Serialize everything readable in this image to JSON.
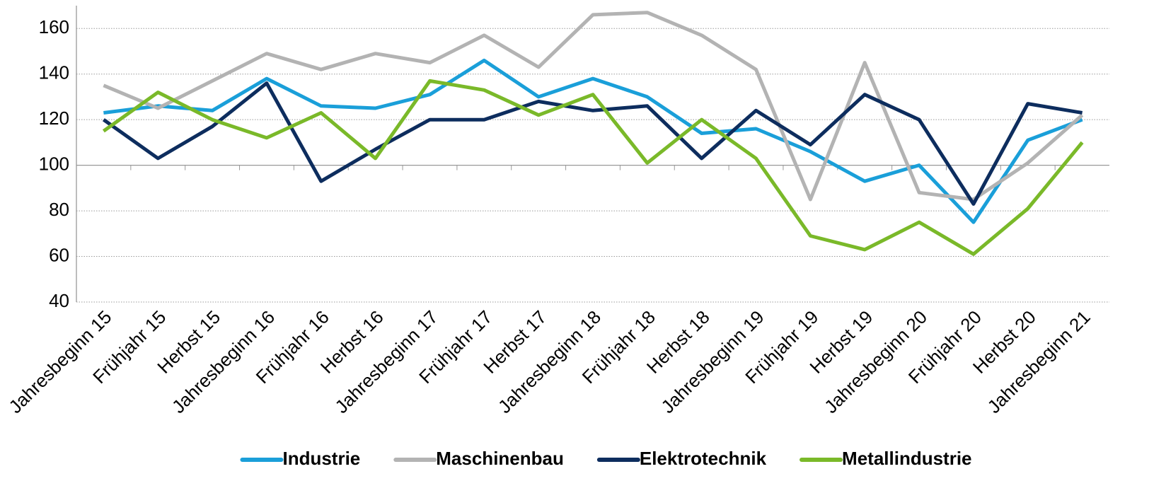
{
  "chart_data": {
    "type": "line",
    "categories": [
      "Jahresbeginn 15",
      "Frühjahr 15",
      "Herbst 15",
      "Jahresbeginn 16",
      "Frühjahr 16",
      "Herbst 16",
      "Jahresbeginn 17",
      "Frühjahr 17",
      "Herbst 17",
      "Jahresbeginn 18",
      "Frühjahr 18",
      "Herbst 18",
      "Jahresbeginn 19",
      "Frühjahr 19",
      "Herbst 19",
      "Jahresbeginn 20",
      "Frühjahr 20",
      "Herbst 20",
      "Jahresbeginn 21"
    ],
    "series": [
      {
        "name": "Industrie",
        "color": "#1a9fd9",
        "values": [
          123,
          126,
          124,
          138,
          126,
          125,
          131,
          146,
          130,
          138,
          130,
          114,
          116,
          106,
          93,
          100,
          75,
          111,
          120
        ]
      },
      {
        "name": "Maschinenbau",
        "color": "#b3b3b3",
        "values": [
          135,
          125,
          137,
          149,
          142,
          149,
          145,
          157,
          143,
          166,
          167,
          157,
          142,
          85,
          145,
          88,
          85,
          101,
          122
        ]
      },
      {
        "name": "Elektrotechnik",
        "color": "#0d2d5e",
        "values": [
          120,
          103,
          117,
          136,
          93,
          107,
          120,
          120,
          128,
          124,
          126,
          103,
          124,
          109,
          131,
          120,
          83,
          127,
          123
        ]
      },
      {
        "name": "Metallindustrie",
        "color": "#7ab929",
        "values": [
          115,
          132,
          120,
          112,
          123,
          103,
          137,
          133,
          122,
          131,
          101,
          120,
          103,
          69,
          63,
          75,
          61,
          81,
          110
        ]
      }
    ],
    "ylim": [
      40,
      170
    ],
    "yticks": [
      40,
      60,
      80,
      100,
      120,
      140,
      160
    ],
    "grid": true,
    "xaxis_crosses": 100,
    "legend": "bottom"
  }
}
